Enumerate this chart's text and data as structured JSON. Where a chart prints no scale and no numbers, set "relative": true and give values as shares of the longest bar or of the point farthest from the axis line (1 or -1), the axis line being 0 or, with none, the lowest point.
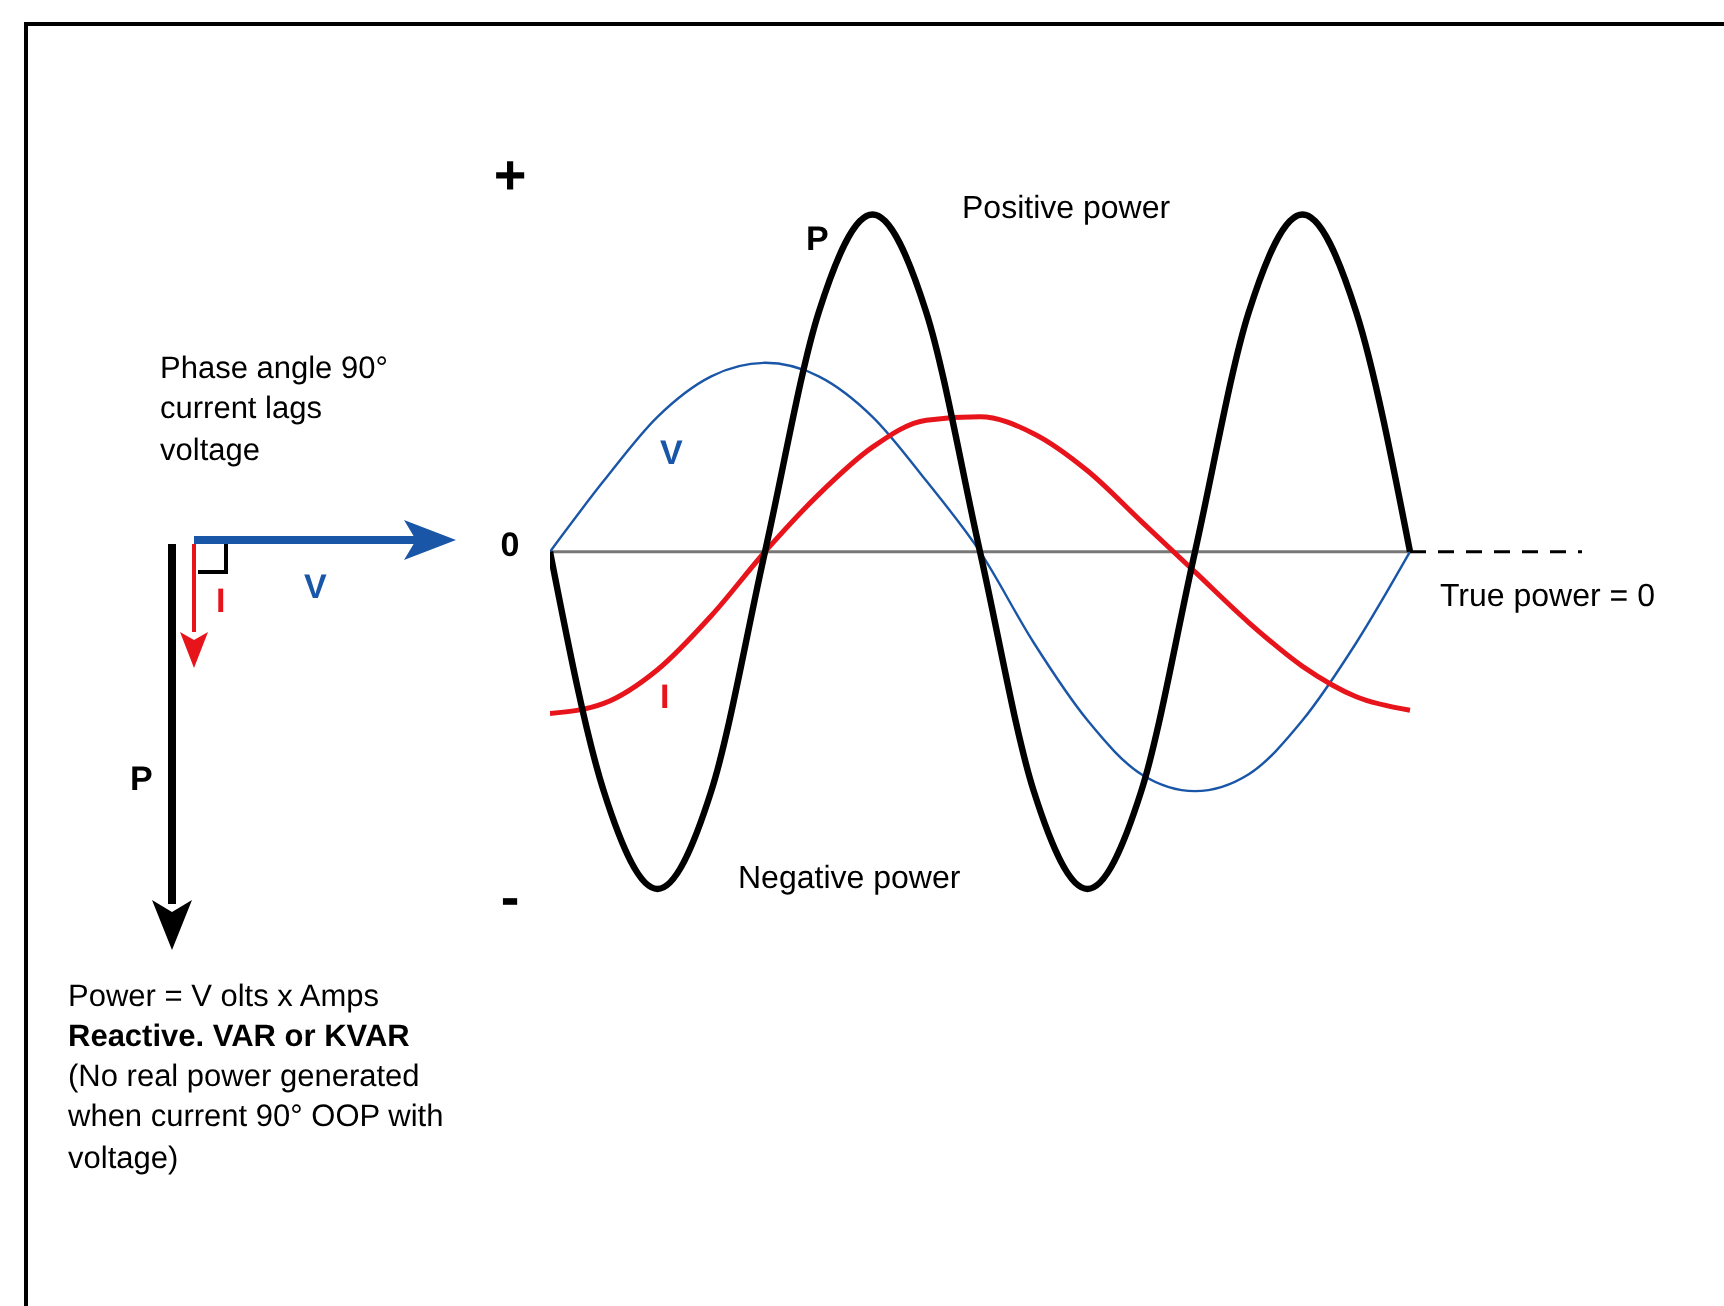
{
  "chart_data": {
    "type": "line",
    "relative": true,
    "marker": "none",
    "grid": false,
    "legend": false,
    "tick_labels": false,
    "categories": [
      null,
      null,
      null,
      null,
      null,
      null,
      null,
      null,
      null,
      null,
      null,
      null,
      null,
      null,
      null,
      null,
      null
    ],
    "series": [
      {
        "name": "V",
        "color": "#1a56a8",
        "values": [
          0,
          0.21,
          0.4,
          0.52,
          0.56,
          0.52,
          0.4,
          0.21,
          0,
          -0.27,
          -0.5,
          -0.66,
          -0.71,
          -0.66,
          -0.5,
          -0.27,
          0
        ]
      },
      {
        "name": "I",
        "color": "#e8141b",
        "values": [
          -0.48,
          -0.45,
          -0.35,
          -0.19,
          0,
          0.17,
          0.31,
          0.39,
          0.4,
          0.35,
          0.24,
          0.09,
          -0.06,
          -0.21,
          -0.34,
          -0.43,
          -0.47
        ]
      },
      {
        "name": "P",
        "color": "#000000",
        "values": [
          0,
          -0.71,
          -1,
          -0.71,
          0,
          0.71,
          1,
          0.71,
          0,
          -0.71,
          -1,
          -0.71,
          0,
          0.71,
          1,
          0.71,
          0
        ]
      }
    ],
    "ref_lines": [
      {
        "axis": "y",
        "value": 0,
        "label": "True power = 0",
        "line_style": "solid",
        "color": "#777777"
      }
    ],
    "annotations": [
      "+",
      "0",
      "-",
      "Positive power",
      "Negative power",
      "Phase angle 90°",
      "current lags",
      "voltage",
      "Power = V olts x Amps",
      "Reactive. VAR or KVAR",
      "(No real power generated",
      "when current 90° OOP with",
      "voltage)",
      "V",
      "I",
      "P"
    ]
  }
}
